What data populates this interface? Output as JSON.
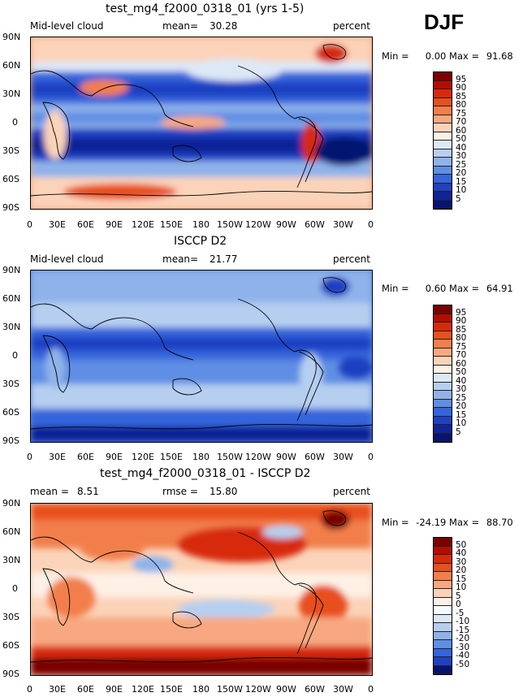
{
  "season": "DJF",
  "panels": [
    {
      "id": "model",
      "title": "test_mg4_f2000_0318_01 (yrs 1-5)",
      "left_label": "Mid-level cloud",
      "mean_label": "mean=",
      "mean_value": "30.28",
      "units": "percent",
      "min_label": "Min =",
      "min_value": "0.00",
      "max_label": "Max =",
      "max_value": "91.68",
      "colorbar_labels": [
        "95",
        "90",
        "85",
        "80",
        "75",
        "70",
        "60",
        "50",
        "40",
        "30",
        "25",
        "20",
        "15",
        "10",
        "5"
      ],
      "colorbar_colors": [
        "#7a0000",
        "#b40c00",
        "#d72a0b",
        "#e8501e",
        "#f27f4b",
        "#f8a880",
        "#fbd3b9",
        "#fdf1e6",
        "#dde8f7",
        "#b6cff0",
        "#8fb2ea",
        "#5f8ee4",
        "#3565db",
        "#1f41c2",
        "#0f2496",
        "#061370"
      ]
    },
    {
      "id": "obs",
      "title": "ISCCP D2",
      "left_label": "Mid-level cloud",
      "mean_label": "mean=",
      "mean_value": "21.77",
      "units": "percent",
      "min_label": "Min =",
      "min_value": "0.60",
      "max_label": "Max =",
      "max_value": "64.91",
      "colorbar_labels": [
        "95",
        "90",
        "85",
        "80",
        "75",
        "70",
        "60",
        "50",
        "40",
        "30",
        "25",
        "20",
        "15",
        "10",
        "5"
      ],
      "colorbar_colors": [
        "#7a0000",
        "#b40c00",
        "#d72a0b",
        "#e8501e",
        "#f27f4b",
        "#f8a880",
        "#fbd3b9",
        "#fdf1e6",
        "#dde8f7",
        "#b6cff0",
        "#8fb2ea",
        "#5f8ee4",
        "#3565db",
        "#1f41c2",
        "#0f2496",
        "#061370"
      ]
    },
    {
      "id": "diff",
      "title": "test_mg4_f2000_0318_01 - ISCCP D2",
      "mean_label": "mean =",
      "mean_value": "8.51",
      "rmse_label": "rmse =",
      "rmse_value": "15.80",
      "units": "percent",
      "min_label": "Min =",
      "min_value": "-24.19",
      "max_label": "Max =",
      "max_value": "88.70",
      "colorbar_labels": [
        "50",
        "40",
        "30",
        "20",
        "15",
        "10",
        "5",
        "0",
        "-5",
        "-10",
        "-15",
        "-20",
        "-30",
        "-40",
        "-50"
      ],
      "colorbar_colors": [
        "#7a0000",
        "#b40c00",
        "#d72a0b",
        "#e8501e",
        "#f27f4b",
        "#f8a880",
        "#fbd3b9",
        "#fdf1e6",
        "#f7fbff",
        "#dde8f7",
        "#b6cff0",
        "#8fb2ea",
        "#5f8ee4",
        "#3565db",
        "#1f41c2",
        "#061370"
      ]
    }
  ],
  "axes": {
    "lat_labels": [
      "90N",
      "60N",
      "30N",
      "0",
      "30S",
      "60S",
      "90S"
    ],
    "lon_labels": [
      "0",
      "30E",
      "60E",
      "90E",
      "120E",
      "150E",
      "180",
      "150W",
      "120W",
      "90W",
      "60W",
      "30W",
      "0"
    ]
  },
  "colors": {
    "deep_blue": "#061370",
    "mid_blue": "#3565db",
    "light_blue": "#b6cff0",
    "neutral": "#fdf1e6",
    "salmon": "#f8a880",
    "red": "#d72a0b",
    "dark_red": "#7a0000"
  }
}
